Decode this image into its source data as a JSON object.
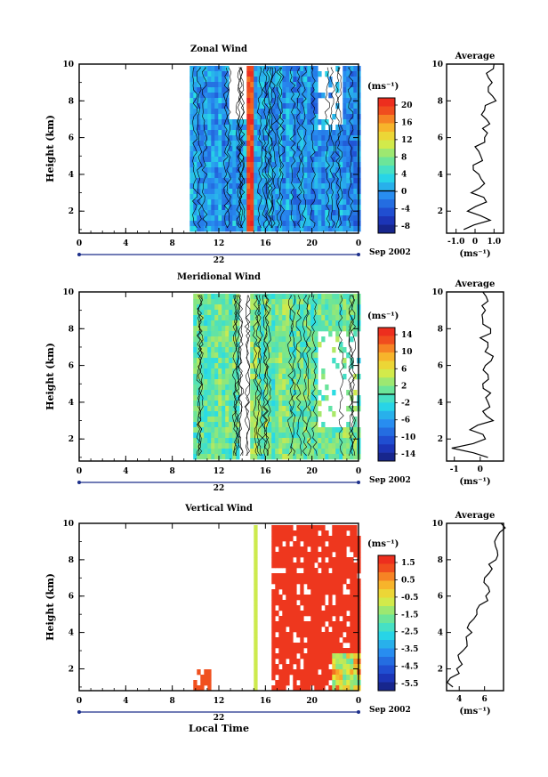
{
  "figure": {
    "xlabel": "Local Time",
    "date_label": "Sep 2002",
    "day_label": "22"
  },
  "chart_data": [
    {
      "type": "heatmap",
      "title": "Zonal Wind",
      "ylabel": "Height (km)",
      "xlabel": "",
      "x_ticks": [
        "0",
        "4",
        "8",
        "12",
        "16",
        "20",
        "0"
      ],
      "xlim": [
        0,
        24
      ],
      "y_ticks": [
        "2",
        "4",
        "6",
        "8",
        "10"
      ],
      "ylim": [
        0.8,
        10
      ],
      "data_xrange": [
        9.5,
        24
      ],
      "unit": "(ms⁻¹)",
      "colorbar_ticks": [
        "20",
        "16",
        "12",
        "8",
        "4",
        "0",
        "-4",
        "-8"
      ],
      "colorbar_range": [
        -10,
        22
      ],
      "contour_level": 0,
      "profile": {
        "title": "Average",
        "xlabel": "(ms⁻¹)",
        "x_ticks": [
          "-1.0",
          "0",
          "1.0"
        ],
        "xlim": [
          -1.5,
          1.5
        ],
        "y_ticks": [
          "2",
          "4",
          "6",
          "8",
          "10"
        ],
        "heights": [
          1,
          1.5,
          2,
          2.5,
          3,
          3.5,
          4,
          4.5,
          5,
          5.5,
          6,
          6.5,
          7,
          7.5,
          8,
          8.5,
          9,
          9.5,
          10
        ],
        "values": [
          -0.6,
          0.8,
          -0.4,
          0.6,
          -0.2,
          0.5,
          0.2,
          -0.1,
          0.3,
          0.0,
          0.5,
          0.4,
          0.6,
          0.5,
          1.1,
          0.7,
          0.9,
          0.6,
          1.0
        ]
      }
    },
    {
      "type": "heatmap",
      "title": "Meridional Wind",
      "ylabel": "Height (km)",
      "xlabel": "",
      "x_ticks": [
        "0",
        "4",
        "8",
        "12",
        "16",
        "20",
        "0"
      ],
      "xlim": [
        0,
        24
      ],
      "y_ticks": [
        "2",
        "4",
        "6",
        "8",
        "10"
      ],
      "ylim": [
        0.8,
        10
      ],
      "data_xrange": [
        9.8,
        24
      ],
      "unit": "(ms⁻¹)",
      "colorbar_ticks": [
        "14",
        "10",
        "6",
        "2",
        "-2",
        "-6",
        "-10",
        "-14"
      ],
      "colorbar_range": [
        -16,
        16
      ],
      "contour_level": 0,
      "profile": {
        "title": "Average",
        "xlabel": "(ms⁻¹)",
        "x_ticks": [
          "-1",
          "0"
        ],
        "xlim": [
          -1.3,
          0.9
        ],
        "y_ticks": [
          "2",
          "4",
          "6",
          "8",
          "10"
        ],
        "heights": [
          1,
          1.5,
          2,
          2.5,
          3,
          3.5,
          4,
          4.5,
          5,
          5.5,
          6,
          6.5,
          7,
          7.5,
          8,
          8.5,
          9,
          9.5,
          10
        ],
        "values": [
          0.3,
          -1.1,
          0.2,
          -0.4,
          0.5,
          0.1,
          0.3,
          0.4,
          0.1,
          0.3,
          0.2,
          0.5,
          0.3,
          0.0,
          0.4,
          0.1,
          0.2,
          0.3,
          0.1
        ]
      }
    },
    {
      "type": "heatmap",
      "title": "Vertical Wind",
      "ylabel": "Height (km)",
      "xlabel": "Local Time",
      "x_ticks": [
        "0",
        "4",
        "8",
        "12",
        "16",
        "20",
        "0"
      ],
      "xlim": [
        0,
        24
      ],
      "y_ticks": [
        "2",
        "4",
        "6",
        "8",
        "10"
      ],
      "ylim": [
        0.8,
        10
      ],
      "data_xrange": [
        9.5,
        24
      ],
      "unit": "(ms⁻¹)",
      "colorbar_ticks": [
        "1.5",
        "0.5",
        "-0.5",
        "-1.5",
        "-2.5",
        "-3.5",
        "-4.5",
        "-5.5"
      ],
      "colorbar_range": [
        -6.5,
        2.5
      ],
      "profile": {
        "title": "Average",
        "xlabel": "(ms⁻¹)",
        "x_ticks": [
          "4",
          "6"
        ],
        "xlim": [
          3,
          7.5
        ],
        "y_ticks": [
          "2",
          "4",
          "6",
          "8",
          "10"
        ],
        "heights": [
          1,
          1.5,
          2,
          2.5,
          3,
          3.5,
          4,
          4.5,
          5,
          5.5,
          6,
          6.5,
          7,
          7.5,
          8,
          8.5,
          9,
          9.5,
          10
        ],
        "values": [
          3.5,
          3.3,
          3.8,
          4.0,
          4.3,
          4.6,
          5.0,
          4.8,
          5.4,
          5.6,
          6.1,
          6.3,
          6.0,
          6.6,
          6.9,
          7.0,
          6.8,
          7.2,
          7.3
        ]
      }
    }
  ]
}
